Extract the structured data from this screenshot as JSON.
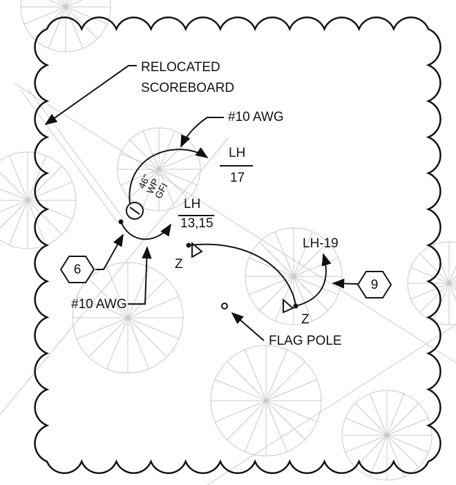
{
  "notes": {
    "scoreboard": [
      "RELOCATED",
      "SCOREBOARD"
    ],
    "wire_top": "#10 AWG",
    "wire_bottom": "#10 AWG",
    "flag_pole": "FLAG POLE"
  },
  "homeruns": [
    {
      "panel": "LH",
      "circuit": "17"
    },
    {
      "panel": "LH",
      "circuit": "13,15"
    },
    {
      "label": "LH-19"
    }
  ],
  "receptacle": [
    "46\"",
    "WP",
    "GFI"
  ],
  "tags": [
    "6",
    "9"
  ],
  "devices": [
    "Z",
    "Z"
  ]
}
